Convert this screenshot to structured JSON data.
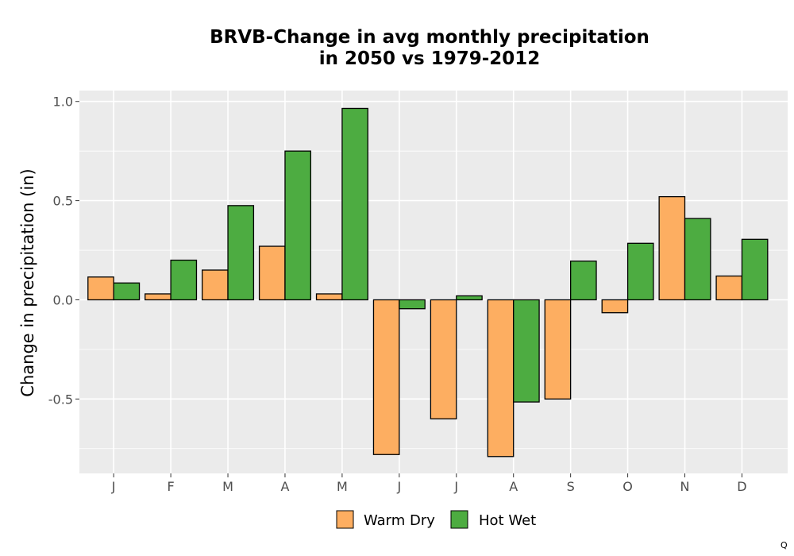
{
  "chart_data": {
    "type": "bar",
    "title_lines": [
      "BRVB-Change in avg monthly precipitation",
      "in 2050 vs 1979-2012"
    ],
    "xlabel": "",
    "ylabel": "Change in precipitation (in)",
    "categories": [
      "J",
      "F",
      "M",
      "A",
      "M",
      "J",
      "J",
      "A",
      "S",
      "O",
      "N",
      "D"
    ],
    "series": [
      {
        "name": "Warm Dry",
        "color": "#FDAE61",
        "values": [
          0.115,
          0.03,
          0.15,
          0.27,
          0.03,
          -0.78,
          -0.6,
          -0.79,
          -0.5,
          -0.065,
          0.52,
          0.12
        ]
      },
      {
        "name": "Hot Wet",
        "color": "#4DAC41",
        "values": [
          0.085,
          0.2,
          0.475,
          0.75,
          0.965,
          -0.045,
          0.02,
          -0.515,
          0.195,
          0.285,
          0.41,
          0.305
        ]
      }
    ],
    "ylim": [
      -0.875,
      1.055
    ],
    "yticks": [
      1.0,
      0.5,
      0.0,
      -0.5
    ],
    "ytick_labels": [
      "1.0",
      "0.5",
      "0.0",
      "-0.5"
    ],
    "grid": true,
    "legend_position": "bottom",
    "panel_color": "#EBEBEB",
    "corner_mark": "Q"
  }
}
